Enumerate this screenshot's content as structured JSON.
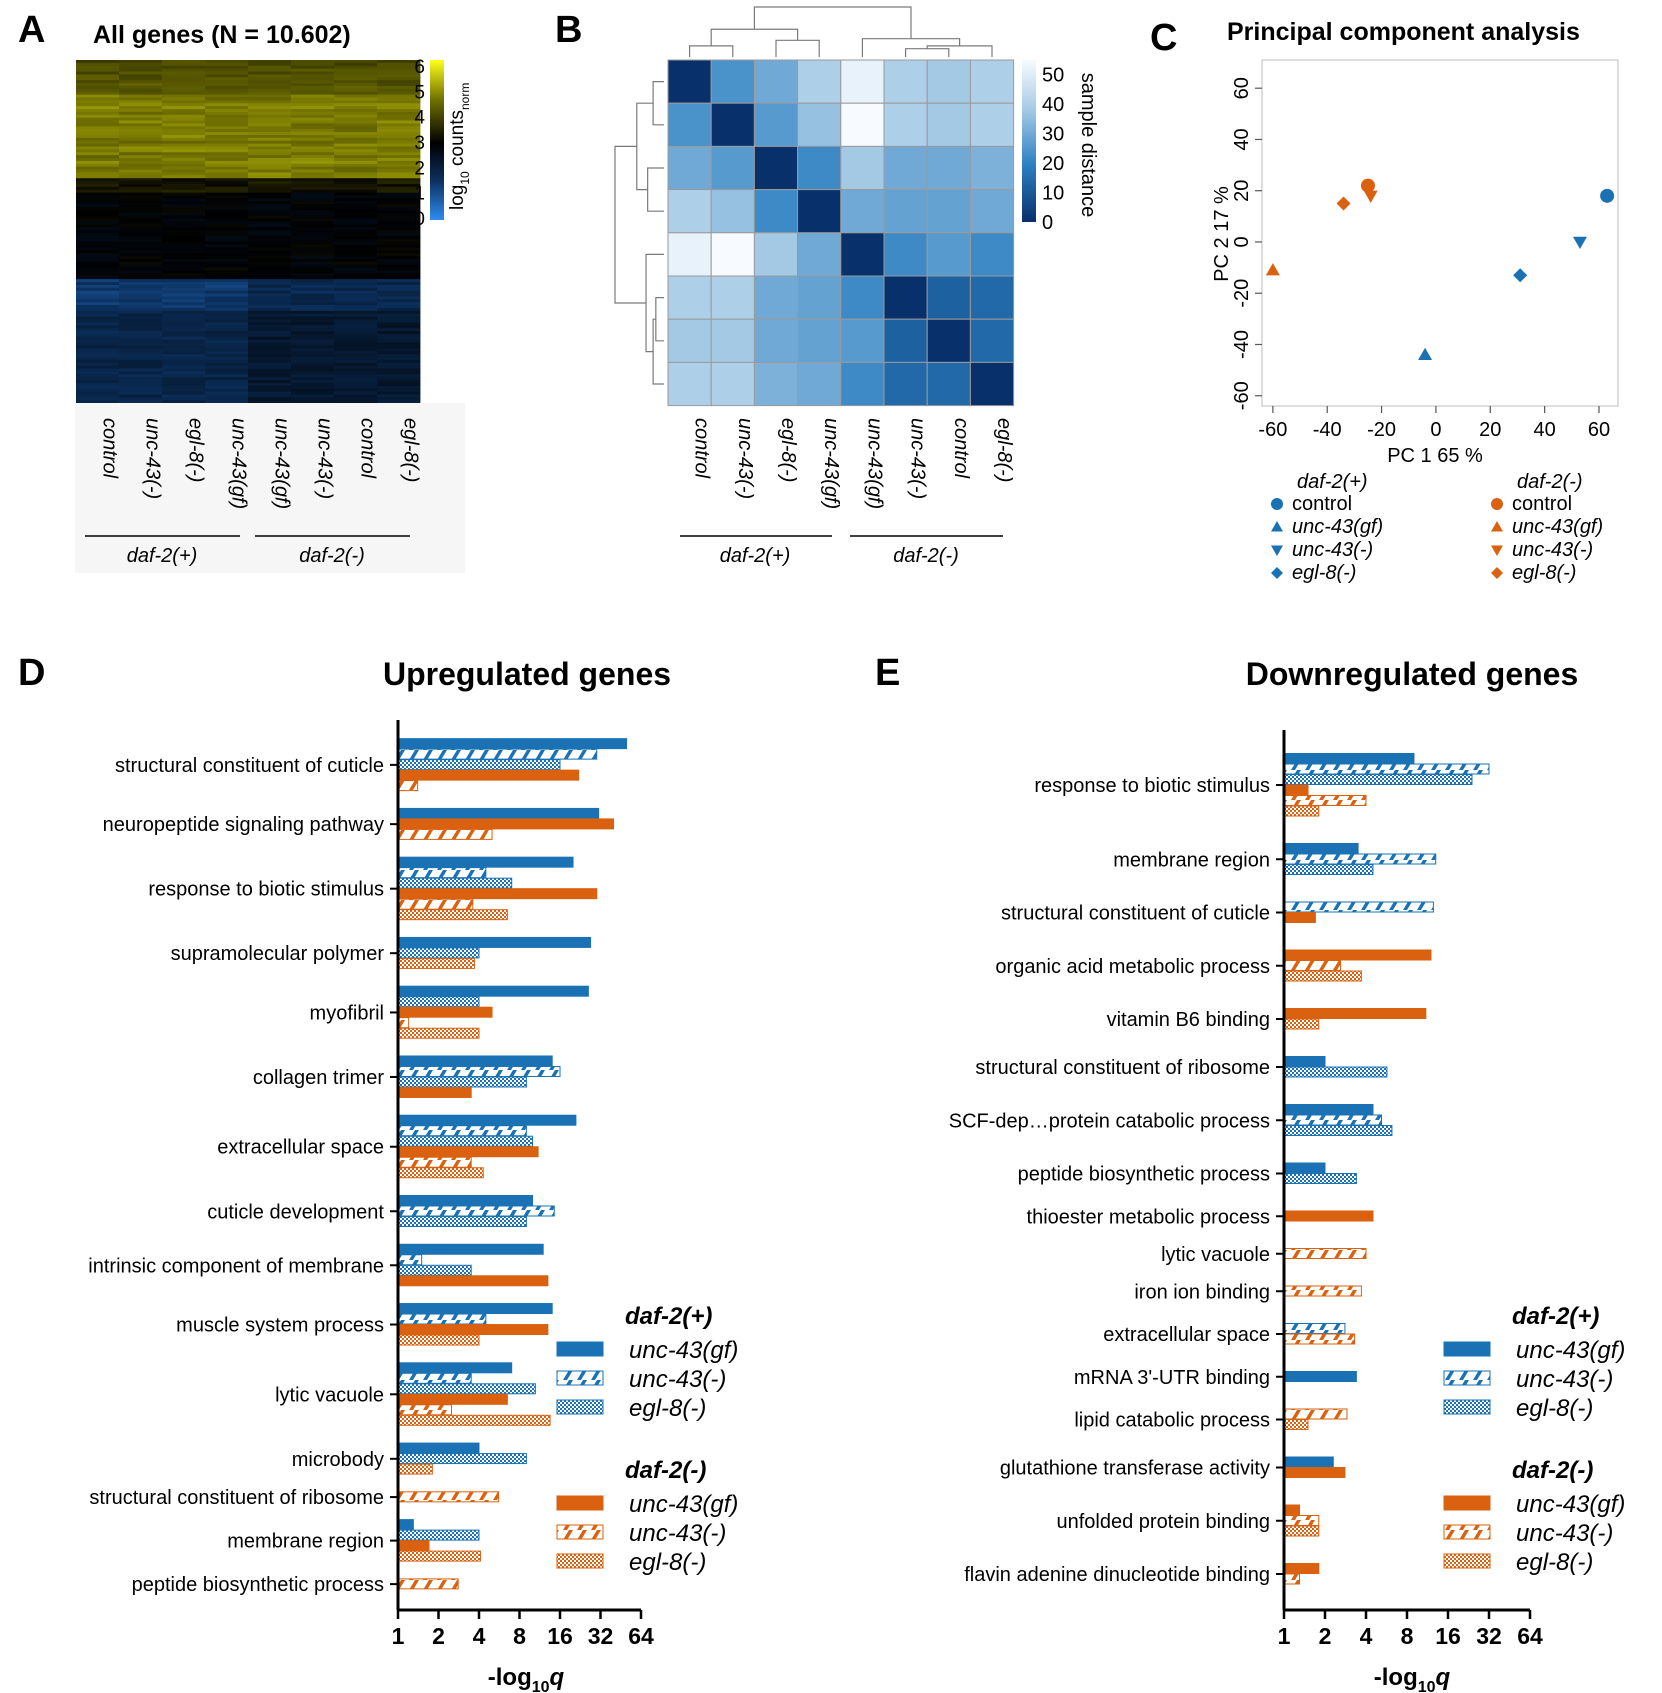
{
  "colors": {
    "blue": "#1a72b4",
    "orange": "#d9610f",
    "cb_low": "#2f8cf0",
    "cb_high": "#ffff00",
    "navy": "#08306b"
  },
  "panels": {
    "A": {
      "letter": "A",
      "title": "All genes (N = 10.602)"
    },
    "B": {
      "letter": "B"
    },
    "C": {
      "letter": "C",
      "title": "Principal component analysis"
    },
    "D": {
      "letter": "D",
      "title": "Upregulated genes"
    },
    "E": {
      "letter": "E",
      "title": "Downregulated genes"
    }
  },
  "chart_data": [
    {
      "id": "A",
      "type": "heatmap",
      "title": "All genes (N = 10.602)",
      "columns": [
        "control",
        "unc-43(-)",
        "egl-8(-)",
        "unc-43(gf)",
        "unc-43(gf)",
        "unc-43(-)",
        "control",
        "egl-8(-)"
      ],
      "groups": [
        {
          "label": "daf-2(+)",
          "columns": [
            0,
            3
          ]
        },
        {
          "label": "daf-2(-)",
          "columns": [
            4,
            7
          ]
        }
      ],
      "colorbar": {
        "label": "log",
        "label_sub": "10",
        "label_rest": " counts",
        "label_norm": "norm",
        "ticks": [
          0,
          1,
          2,
          3,
          4,
          5,
          6
        ],
        "min": 0,
        "max": 6
      }
    },
    {
      "id": "B",
      "type": "heatmap",
      "columns": [
        "control",
        "unc-43(-)",
        "egl-8(-)",
        "unc-43(gf)",
        "unc-43(gf)",
        "unc-43(-)",
        "control",
        "egl-8(-)"
      ],
      "groups": [
        {
          "label": "daf-2(+)",
          "columns": [
            0,
            3
          ]
        },
        {
          "label": "daf-2(-)",
          "columns": [
            4,
            7
          ]
        }
      ],
      "values": [
        [
          0,
          24,
          30,
          40,
          52,
          40,
          38,
          40
        ],
        [
          24,
          0,
          26,
          36,
          55,
          40,
          38,
          40
        ],
        [
          30,
          26,
          0,
          22,
          38,
          30,
          30,
          32
        ],
        [
          40,
          36,
          22,
          0,
          30,
          28,
          28,
          30
        ],
        [
          52,
          55,
          38,
          30,
          0,
          22,
          26,
          22
        ],
        [
          40,
          40,
          30,
          28,
          22,
          0,
          12,
          14
        ],
        [
          38,
          38,
          30,
          28,
          26,
          12,
          0,
          14
        ],
        [
          40,
          40,
          32,
          30,
          22,
          14,
          14,
          0
        ]
      ],
      "colorbar": {
        "label": "sample distance",
        "ticks": [
          0,
          10,
          20,
          30,
          40,
          50
        ],
        "min": 0,
        "max": 55
      }
    },
    {
      "id": "C",
      "type": "scatter",
      "title": "Principal component analysis",
      "xlabel": "PC 1 65 %",
      "ylabel": "PC 2 17 %",
      "xlim": [
        -64,
        67
      ],
      "ylim": [
        -64,
        71
      ],
      "xticks": [
        -60,
        -40,
        -20,
        0,
        20,
        40,
        60
      ],
      "yticks": [
        -60,
        -40,
        -20,
        0,
        20,
        40,
        60
      ],
      "points": [
        {
          "group": "daf-2(+)",
          "sample": "control",
          "shape": "circle",
          "x": 63,
          "y": 18
        },
        {
          "group": "daf-2(+)",
          "sample": "unc-43(gf)",
          "shape": "triangle-up",
          "x": -4,
          "y": -44
        },
        {
          "group": "daf-2(+)",
          "sample": "unc-43(-)",
          "shape": "triangle-down",
          "x": 53,
          "y": 0
        },
        {
          "group": "daf-2(+)",
          "sample": "egl-8(-)",
          "shape": "diamond",
          "x": 31,
          "y": -13
        },
        {
          "group": "daf-2(-)",
          "sample": "control",
          "shape": "circle",
          "x": -25,
          "y": 22
        },
        {
          "group": "daf-2(-)",
          "sample": "unc-43(gf)",
          "shape": "triangle-up",
          "x": -60,
          "y": -11
        },
        {
          "group": "daf-2(-)",
          "sample": "unc-43(-)",
          "shape": "triangle-down",
          "x": -24,
          "y": 18
        },
        {
          "group": "daf-2(-)",
          "sample": "egl-8(-)",
          "shape": "diamond",
          "x": -34,
          "y": 15
        }
      ],
      "legend": [
        {
          "title": "daf-2(+)",
          "color": "blue",
          "entries": [
            {
              "label": "control",
              "shape": "circle"
            },
            {
              "label": "unc-43(gf)",
              "shape": "triangle-up"
            },
            {
              "label": "unc-43(-)",
              "shape": "triangle-down"
            },
            {
              "label": "egl-8(-)",
              "shape": "diamond"
            }
          ]
        },
        {
          "title": "daf-2(-)",
          "color": "orange",
          "entries": [
            {
              "label": "control",
              "shape": "circle"
            },
            {
              "label": "unc-43(gf)",
              "shape": "triangle-up"
            },
            {
              "label": "unc-43(-)",
              "shape": "triangle-down"
            },
            {
              "label": "egl-8(-)",
              "shape": "diamond"
            }
          ]
        }
      ]
    },
    {
      "id": "D",
      "type": "bar",
      "orientation": "horizontal",
      "title": "Upregulated genes",
      "xlabel": "-log",
      "xlabel_sub": "10",
      "xlabel_var": "q",
      "xscale": "log2",
      "xlim": [
        1,
        64
      ],
      "xticks": [
        1,
        2,
        4,
        8,
        16,
        32,
        64
      ],
      "series_keys": [
        "p_gf",
        "p_neg",
        "p_egl",
        "m_gf",
        "m_neg",
        "m_egl"
      ],
      "legend_groups": [
        {
          "title": "daf-2(+)",
          "entries": [
            {
              "label": "unc-43(gf)",
              "key": "p_gf"
            },
            {
              "label": "unc-43(-)",
              "key": "p_neg"
            },
            {
              "label": "egl-8(-)",
              "key": "p_egl"
            }
          ]
        },
        {
          "title": "daf-2(-)",
          "entries": [
            {
              "label": "unc-43(gf)",
              "key": "m_gf"
            },
            {
              "label": "unc-43(-)",
              "key": "m_neg"
            },
            {
              "label": "egl-8(-)",
              "key": "m_egl"
            }
          ]
        }
      ],
      "categories": [
        {
          "label": "structural constituent of cuticle",
          "values": {
            "p_gf": 50,
            "p_neg": 30,
            "p_egl": 16,
            "m_gf": 22,
            "m_neg": 1.4
          }
        },
        {
          "label": "neuropeptide signaling pathway",
          "values": {
            "p_gf": 31,
            "m_gf": 40,
            "m_neg": 5
          }
        },
        {
          "label": "response to biotic stimulus",
          "values": {
            "p_gf": 20,
            "p_neg": 4.5,
            "p_egl": 7,
            "m_gf": 30,
            "m_neg": 3.6,
            "m_egl": 6.5
          }
        },
        {
          "label": "supramolecular polymer",
          "values": {
            "p_gf": 27,
            "p_egl": 4,
            "m_egl": 3.7
          }
        },
        {
          "label": "myofibril",
          "values": {
            "p_gf": 26,
            "p_egl": 4,
            "m_gf": 5,
            "m_neg": 1.2,
            "m_egl": 4
          }
        },
        {
          "label": "collagen trimer",
          "values": {
            "p_gf": 14,
            "p_neg": 16,
            "p_egl": 9,
            "m_gf": 3.5
          }
        },
        {
          "label": "extracellular space",
          "values": {
            "p_gf": 21,
            "p_neg": 9,
            "p_egl": 10,
            "m_gf": 11,
            "m_neg": 3.5,
            "m_egl": 4.3
          }
        },
        {
          "label": "cuticle development",
          "values": {
            "p_gf": 10,
            "p_neg": 14.5,
            "p_egl": 9
          }
        },
        {
          "label": "intrinsic component of membrane",
          "values": {
            "p_gf": 12,
            "p_neg": 1.5,
            "p_egl": 3.5,
            "m_gf": 13
          }
        },
        {
          "label": "muscle system process",
          "values": {
            "p_gf": 14,
            "p_neg": 4.5,
            "m_gf": 13,
            "m_egl": 4
          }
        },
        {
          "label": "lytic vacuole",
          "values": {
            "p_gf": 7,
            "p_neg": 3.5,
            "p_egl": 10.5,
            "m_gf": 6.5,
            "m_neg": 2.5,
            "m_egl": 13.5
          }
        },
        {
          "label": "microbody",
          "values": {
            "p_gf": 4,
            "p_egl": 9,
            "m_egl": 1.8
          }
        },
        {
          "label": "structural constituent of ribosome",
          "values": {
            "m_neg": 5.6
          }
        },
        {
          "label": "membrane region",
          "values": {
            "p_gf": 1.3,
            "p_egl": 4,
            "m_gf": 1.7,
            "m_egl": 4.1
          }
        },
        {
          "label": "peptide biosynthetic process",
          "values": {
            "m_neg": 2.8
          }
        }
      ]
    },
    {
      "id": "E",
      "type": "bar",
      "orientation": "horizontal",
      "title": "Downregulated genes",
      "xlabel": "-log",
      "xlabel_sub": "10",
      "xlabel_var": "q",
      "xscale": "log2",
      "xlim": [
        1,
        64
      ],
      "xticks": [
        1,
        2,
        4,
        8,
        16,
        32,
        64
      ],
      "series_keys": [
        "p_gf",
        "p_neg",
        "p_egl",
        "m_gf",
        "m_neg",
        "m_egl"
      ],
      "legend_groups": [
        {
          "title": "daf-2(+)",
          "entries": [
            {
              "label": "unc-43(gf)",
              "key": "p_gf"
            },
            {
              "label": "unc-43(-)",
              "key": "p_neg"
            },
            {
              "label": "egl-8(-)",
              "key": "p_egl"
            }
          ]
        },
        {
          "title": "daf-2(-)",
          "entries": [
            {
              "label": "unc-43(gf)",
              "key": "m_gf"
            },
            {
              "label": "unc-43(-)",
              "key": "m_neg"
            },
            {
              "label": "egl-8(-)",
              "key": "m_egl"
            }
          ]
        }
      ],
      "categories": [
        {
          "label": "response to biotic stimulus",
          "values": {
            "p_gf": 9,
            "p_neg": 32,
            "p_egl": 24,
            "m_gf": 1.5,
            "m_neg": 4,
            "m_egl": 1.8
          }
        },
        {
          "label": "membrane region",
          "values": {
            "p_gf": 3.5,
            "p_neg": 13,
            "p_egl": 4.5
          }
        },
        {
          "label": "structural constituent of cuticle",
          "values": {
            "p_neg": 12.5,
            "m_gf": 1.7
          }
        },
        {
          "label": "organic acid metabolic process",
          "values": {
            "m_gf": 12,
            "m_neg": 2.6,
            "m_egl": 3.7
          }
        },
        {
          "label": "vitamin B6 binding",
          "values": {
            "m_gf": 11,
            "m_egl": 1.8
          }
        },
        {
          "label": "structural constituent of ribosome",
          "values": {
            "p_gf": 2,
            "p_egl": 5.7
          }
        },
        {
          "label": "SCF-dep…protein catabolic process",
          "values": {
            "p_gf": 4.5,
            "p_neg": 5.2,
            "p_egl": 6.2
          }
        },
        {
          "label": "peptide biosynthetic process",
          "values": {
            "p_gf": 2,
            "p_egl": 3.4
          }
        },
        {
          "label": "thioester metabolic process",
          "values": {
            "m_gf": 4.5
          }
        },
        {
          "label": "lytic vacuole",
          "values": {
            "m_neg": 4
          }
        },
        {
          "label": "iron ion binding",
          "values": {
            "m_neg": 3.7
          }
        },
        {
          "label": "extracellular space",
          "values": {
            "p_neg": 2.8,
            "m_neg": 3.3
          }
        },
        {
          "label": "mRNA 3'-UTR binding",
          "values": {
            "p_gf": 3.4
          }
        },
        {
          "label": "lipid catabolic process",
          "values": {
            "m_neg": 2.9,
            "m_egl": 1.5
          }
        },
        {
          "label": "glutathione transferase activity",
          "values": {
            "p_gf": 2.3,
            "m_gf": 2.8
          }
        },
        {
          "label": "unfolded protein binding",
          "values": {
            "m_gf": 1.3,
            "m_neg": 1.8,
            "m_egl": 1.8
          }
        },
        {
          "label": "flavin adenine dinucleotide binding",
          "values": {
            "m_gf": 1.8,
            "m_neg": 1.3
          }
        }
      ]
    }
  ]
}
